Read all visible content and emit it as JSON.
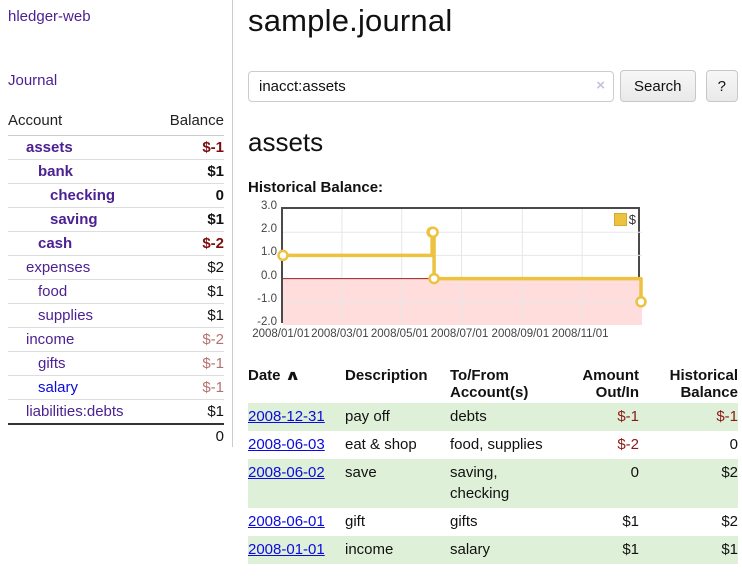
{
  "sidebar": {
    "app_title": "hledger-web",
    "nav": [
      {
        "label": "Journal"
      }
    ],
    "accounts_table": {
      "headers": [
        "Account",
        "Balance"
      ],
      "rows": [
        {
          "account": "assets",
          "balance": "$-1",
          "level": 1,
          "bold": true
        },
        {
          "account": "bank",
          "balance": "$1",
          "level": 2,
          "bold": true
        },
        {
          "account": "checking",
          "balance": "0",
          "level": 3,
          "bold": true
        },
        {
          "account": "saving",
          "balance": "$1",
          "level": 3,
          "bold": true
        },
        {
          "account": "cash",
          "balance": "$-2",
          "level": 2,
          "bold": true
        },
        {
          "account": "expenses",
          "balance": "$2",
          "level": 1,
          "bold": false
        },
        {
          "account": "food",
          "balance": "$1",
          "level": 2,
          "bold": false
        },
        {
          "account": "supplies",
          "balance": "$1",
          "level": 2,
          "bold": false
        },
        {
          "account": "income",
          "balance": "$-2",
          "level": 1,
          "bold": false
        },
        {
          "account": "gifts",
          "balance": "$-1",
          "level": 2,
          "bold": false
        },
        {
          "account": "salary",
          "balance": "$-1",
          "level": 2,
          "bold": false,
          "unvisited": true
        },
        {
          "account": "liabilities:debts",
          "balance": "$1",
          "level": 1,
          "bold": false
        }
      ],
      "total": "0"
    }
  },
  "header": {
    "title": "sample.journal"
  },
  "search": {
    "value": "inacct:assets",
    "clear_icon": "×",
    "search_button": "Search",
    "help_button": "?"
  },
  "account_view": {
    "heading": "assets",
    "chart_title": "Historical Balance:"
  },
  "chart_data": {
    "type": "line",
    "title": "Historical Balance:",
    "x_range": [
      "2008-01-01",
      "2009-01-01"
    ],
    "ylim": [
      -2,
      3
    ],
    "series": [
      {
        "name": "$",
        "color": "#EDC240",
        "steps": true,
        "points": [
          [
            "2008-01-01",
            1
          ],
          [
            "2008-06-01",
            2
          ],
          [
            "2008-06-02",
            2
          ],
          [
            "2008-06-03",
            0
          ],
          [
            "2008-12-31",
            -1
          ]
        ]
      }
    ],
    "y_ticks": [
      {
        "v": 3,
        "label": "3.0"
      },
      {
        "v": 2,
        "label": "2.0"
      },
      {
        "v": 1,
        "label": "1.0"
      },
      {
        "v": 0,
        "label": "0.0"
      },
      {
        "v": -1,
        "label": "-1.0"
      },
      {
        "v": -2,
        "label": "-2.0"
      }
    ],
    "x_ticks": [
      {
        "t": "2008-01-01",
        "label": "2008/01/01"
      },
      {
        "t": "2008-03-01",
        "label": "2008/03/01"
      },
      {
        "t": "2008-05-01",
        "label": "2008/05/01"
      },
      {
        "t": "2008-07-01",
        "label": "2008/07/01"
      },
      {
        "t": "2008-09-01",
        "label": "2008/09/01"
      },
      {
        "t": "2008-11-01",
        "label": "2008/11/01"
      }
    ],
    "legend": {
      "label": "$",
      "position": "top-right"
    },
    "grid": true,
    "negative_region_color": "#ffdddd",
    "zero_line_color": "#991f1f"
  },
  "register_table": {
    "headers": {
      "date": "Date",
      "description": "Description",
      "accounts": "To/From Account(s)",
      "amount": "Amount Out/In",
      "balance": "Historical Balance"
    },
    "sort_icon": "∧",
    "rows": [
      {
        "date": "2008-12-31",
        "description": "pay off",
        "accounts": "debts",
        "amount": "$-1",
        "balance": "$-1"
      },
      {
        "date": "2008-06-03",
        "description": "eat & shop",
        "accounts": "food, supplies",
        "amount": "$-2",
        "balance": "0"
      },
      {
        "date": "2008-06-02",
        "description": "save",
        "accounts": "saving, checking",
        "amount": "0",
        "balance": "$2"
      },
      {
        "date": "2008-06-01",
        "description": "gift",
        "accounts": "gifts",
        "amount": "$1",
        "balance": "$2"
      },
      {
        "date": "2008-01-01",
        "description": "income",
        "accounts": "salary",
        "amount": "$1",
        "balance": "$1"
      }
    ]
  }
}
